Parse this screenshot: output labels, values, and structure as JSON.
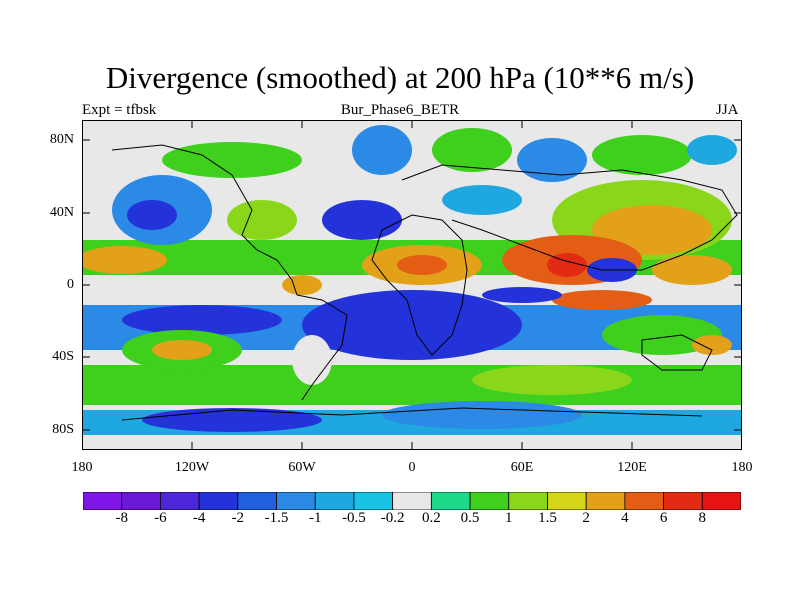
{
  "title": "Divergence (smoothed) at 200 hPa (10**6 m/s)",
  "left_subtitle": "Expt = tfbsk",
  "center_subtitle": "Bur_Phase6_BETR",
  "right_subtitle": "JJA",
  "lat_labels": [
    "80N",
    "40N",
    "0",
    "40S",
    "80S"
  ],
  "lon_labels": [
    "180",
    "120W",
    "60W",
    "0",
    "60E",
    "120E",
    "180"
  ],
  "colorbar": {
    "labels": [
      "-8",
      "-6",
      "-4",
      "-2",
      "-1.5",
      "-1",
      "-0.5",
      "-0.2",
      "0.2",
      "0.5",
      "1",
      "1.5",
      "2",
      "4",
      "6",
      "8"
    ],
    "colors": [
      "#7d16e6",
      "#6a1ad6",
      "#4c26d9",
      "#2433d9",
      "#1f5fe0",
      "#2a8ae6",
      "#1fa8e0",
      "#19c3e3",
      "#e8e8e8",
      "#1dd98a",
      "#3fcf1d",
      "#8ad61a",
      "#d4d419",
      "#e3a119",
      "#e35d14",
      "#e32a14",
      "#e61414"
    ]
  }
}
